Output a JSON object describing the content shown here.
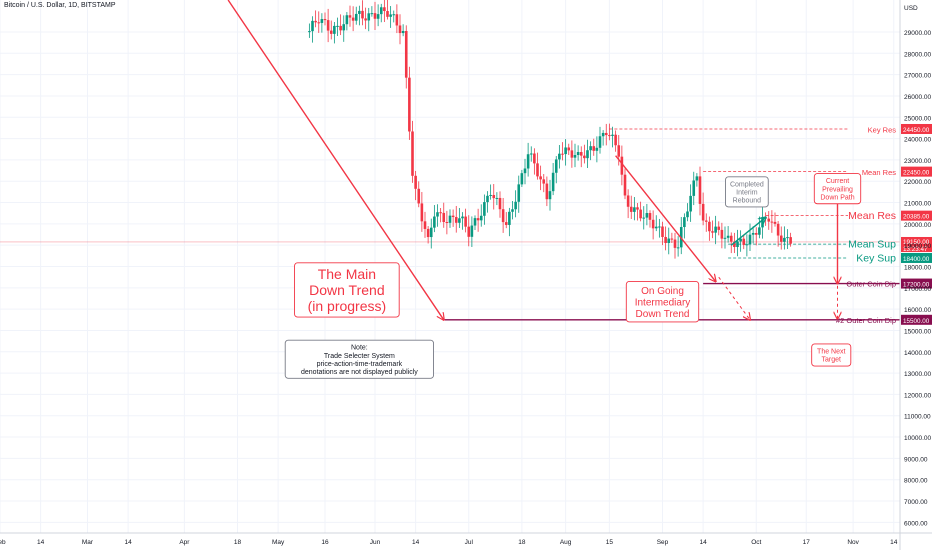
{
  "header": {
    "title": "Bitcoin / U.S. Dollar, 1D, BITSTAMP"
  },
  "chart_data": {
    "type": "candlestick",
    "y_unit": "USD",
    "ylim": [
      5500,
      30500
    ],
    "xlim": [
      "2022-02-01",
      "2022-11-16"
    ],
    "y_ticks": [
      6000,
      7000,
      8000,
      9000,
      10000,
      11000,
      12000,
      13000,
      14000,
      15000,
      16000,
      17000,
      18000,
      19000,
      20000,
      21000,
      22000,
      23000,
      24000,
      25000,
      26000,
      27000,
      28000,
      29000
    ],
    "x_ticks": [
      {
        "date": "2022-02-01",
        "label": "Feb"
      },
      {
        "date": "2022-02-14",
        "label": "14"
      },
      {
        "date": "2022-03-01",
        "label": "Mar"
      },
      {
        "date": "2022-03-14",
        "label": "14"
      },
      {
        "date": "2022-04-01",
        "label": "Apr"
      },
      {
        "date": "2022-04-18",
        "label": "18"
      },
      {
        "date": "2022-05-01",
        "label": "May"
      },
      {
        "date": "2022-05-16",
        "label": "16"
      },
      {
        "date": "2022-06-01",
        "label": "Jun"
      },
      {
        "date": "2022-06-14",
        "label": "14"
      },
      {
        "date": "2022-07-01",
        "label": "Jul"
      },
      {
        "date": "2022-07-18",
        "label": "18"
      },
      {
        "date": "2022-08-01",
        "label": "Aug"
      },
      {
        "date": "2022-08-15",
        "label": "15"
      },
      {
        "date": "2022-09-01",
        "label": "Sep"
      },
      {
        "date": "2022-09-14",
        "label": "14"
      },
      {
        "date": "2022-10-01",
        "label": "Oct"
      },
      {
        "date": "2022-10-17",
        "label": "17"
      },
      {
        "date": "2022-11-01",
        "label": "Nov"
      },
      {
        "date": "2022-11-14",
        "label": "14"
      }
    ],
    "anchors": [
      {
        "date": "2022-05-11",
        "value": 29000
      },
      {
        "date": "2022-05-14",
        "value": 29500
      },
      {
        "date": "2022-05-18",
        "value": 29200
      },
      {
        "date": "2022-05-25",
        "value": 29600
      },
      {
        "date": "2022-06-02",
        "value": 30000
      },
      {
        "date": "2022-06-05",
        "value": 29800
      },
      {
        "date": "2022-06-10",
        "value": 29000
      },
      {
        "date": "2022-06-13",
        "value": 22500
      },
      {
        "date": "2022-06-14",
        "value": 21500
      },
      {
        "date": "2022-06-18",
        "value": 19000
      },
      {
        "date": "2022-06-20",
        "value": 20500
      },
      {
        "date": "2022-06-28",
        "value": 20200
      },
      {
        "date": "2022-07-01",
        "value": 19500
      },
      {
        "date": "2022-07-08",
        "value": 21600
      },
      {
        "date": "2022-07-13",
        "value": 19800
      },
      {
        "date": "2022-07-20",
        "value": 23400
      },
      {
        "date": "2022-07-26",
        "value": 21200
      },
      {
        "date": "2022-07-30",
        "value": 23600
      },
      {
        "date": "2022-08-05",
        "value": 23000
      },
      {
        "date": "2022-08-14",
        "value": 24300
      },
      {
        "date": "2022-08-18",
        "value": 23300
      },
      {
        "date": "2022-08-20",
        "value": 21200
      },
      {
        "date": "2022-08-28",
        "value": 20000
      },
      {
        "date": "2022-09-06",
        "value": 19000
      },
      {
        "date": "2022-09-12",
        "value": 22300
      },
      {
        "date": "2022-09-14",
        "value": 20200
      },
      {
        "date": "2022-09-22",
        "value": 19100
      },
      {
        "date": "2022-09-30",
        "value": 19400
      },
      {
        "date": "2022-10-05",
        "value": 20300
      },
      {
        "date": "2022-10-10",
        "value": 19300
      },
      {
        "date": "2022-10-13",
        "value": 19150
      }
    ],
    "levels": [
      {
        "name": "Key Res",
        "value": 24450.0,
        "label": "24450.00",
        "color": "#f23645",
        "style": "dashed",
        "from": "2022-08-15"
      },
      {
        "name": "Mean Res",
        "value": 22450.0,
        "label": "22450.00",
        "color": "#f23645",
        "style": "dashed",
        "from": "2022-09-14"
      },
      {
        "name": "Mean Res",
        "value": 20385.0,
        "label": "20385.00",
        "color": "#f23645",
        "style": "dashed",
        "from": "2022-10-04"
      },
      {
        "name": "Mean Sup",
        "value": 19050.0,
        "label": "19050.00",
        "color": "#089981",
        "style": "dashed",
        "from": "2022-09-22"
      },
      {
        "name": "Key Sup",
        "value": 18400.0,
        "label": "18400.00",
        "color": "#089981",
        "style": "dashed",
        "from": "2022-09-22"
      },
      {
        "name": "Outer Coin Dip",
        "value": 17200.0,
        "label": "17200.00",
        "color": "#880e4f",
        "style": "solid",
        "from": "2022-09-14"
      },
      {
        "name": "#2 Outer Coin Dip",
        "value": 15500.0,
        "label": "15500.00",
        "color": "#880e4f",
        "style": "solid",
        "from": "2022-06-23"
      }
    ],
    "current_price": {
      "value": 19150.0,
      "label": "19150.00",
      "countdown": "13:23:47"
    },
    "trendlines": [
      {
        "from": {
          "date": "2022-04-15",
          "value": 30500
        },
        "to": {
          "date": "2022-06-23",
          "value": 15500
        },
        "color": "#f23645",
        "arrow": true,
        "dashed": false
      },
      {
        "from": {
          "date": "2022-08-17",
          "value": 23200
        },
        "to": {
          "date": "2022-09-18",
          "value": 17300
        },
        "color": "#f23645",
        "arrow": true,
        "dashed": false
      },
      {
        "from": {
          "date": "2022-09-19",
          "value": 17500
        },
        "to": {
          "date": "2022-09-29",
          "value": 15500
        },
        "color": "#f23645",
        "arrow": true,
        "dashed": true
      },
      {
        "from": {
          "date": "2022-09-23",
          "value": 19000
        },
        "to": {
          "date": "2022-10-04",
          "value": 20300
        },
        "color": "#089981",
        "arrow": true,
        "dashed": false
      },
      {
        "from": {
          "date": "2022-10-27",
          "value": 21100
        },
        "to": {
          "date": "2022-10-27",
          "value": 17200
        },
        "color": "#f23645",
        "arrow": true,
        "dashed": false
      },
      {
        "from": {
          "date": "2022-10-27",
          "value": 17100
        },
        "to": {
          "date": "2022-10-27",
          "value": 15550
        },
        "color": "#f23645",
        "arrow": true,
        "dashed": true
      }
    ],
    "annotations": [
      {
        "text": [
          "The Main",
          "Down Trend",
          "(in progress)"
        ],
        "color": "#f23645",
        "border": "#f23645",
        "date": "2022-05-23",
        "value": 16900,
        "size": "large"
      },
      {
        "text": [
          "On Going",
          "Intermediary",
          "Down Trend"
        ],
        "color": "#f23645",
        "border": "#f23645",
        "date": "2022-09-01",
        "value": 16350,
        "size": "medium"
      },
      {
        "text": [
          "Completed",
          "Interim",
          "Rebound"
        ],
        "color": "#787b86",
        "border": "#787b86",
        "date": "2022-09-28",
        "value": 21500,
        "size": "small"
      },
      {
        "text": [
          "Current",
          "Prevailing",
          "Down Path"
        ],
        "color": "#f23645",
        "border": "#f23645",
        "date": "2022-10-27",
        "value": 21650,
        "size": "small"
      },
      {
        "text": [
          "The Next",
          "Target"
        ],
        "color": "#f23645",
        "border": "#f23645",
        "date": "2022-10-25",
        "value": 13850,
        "size": "small"
      },
      {
        "text": [
          "Note:",
          "Trade Selecter System",
          "price-action-time-trademark",
          "denotations are not displayed publicly"
        ],
        "color": "#131722",
        "border": "#787b86",
        "date": "2022-05-27",
        "value": 13650,
        "size": "small"
      }
    ]
  },
  "colors": {
    "up": "#089981",
    "down": "#f23645",
    "grid": "#f0f3fa",
    "axis_text": "#131722"
  }
}
